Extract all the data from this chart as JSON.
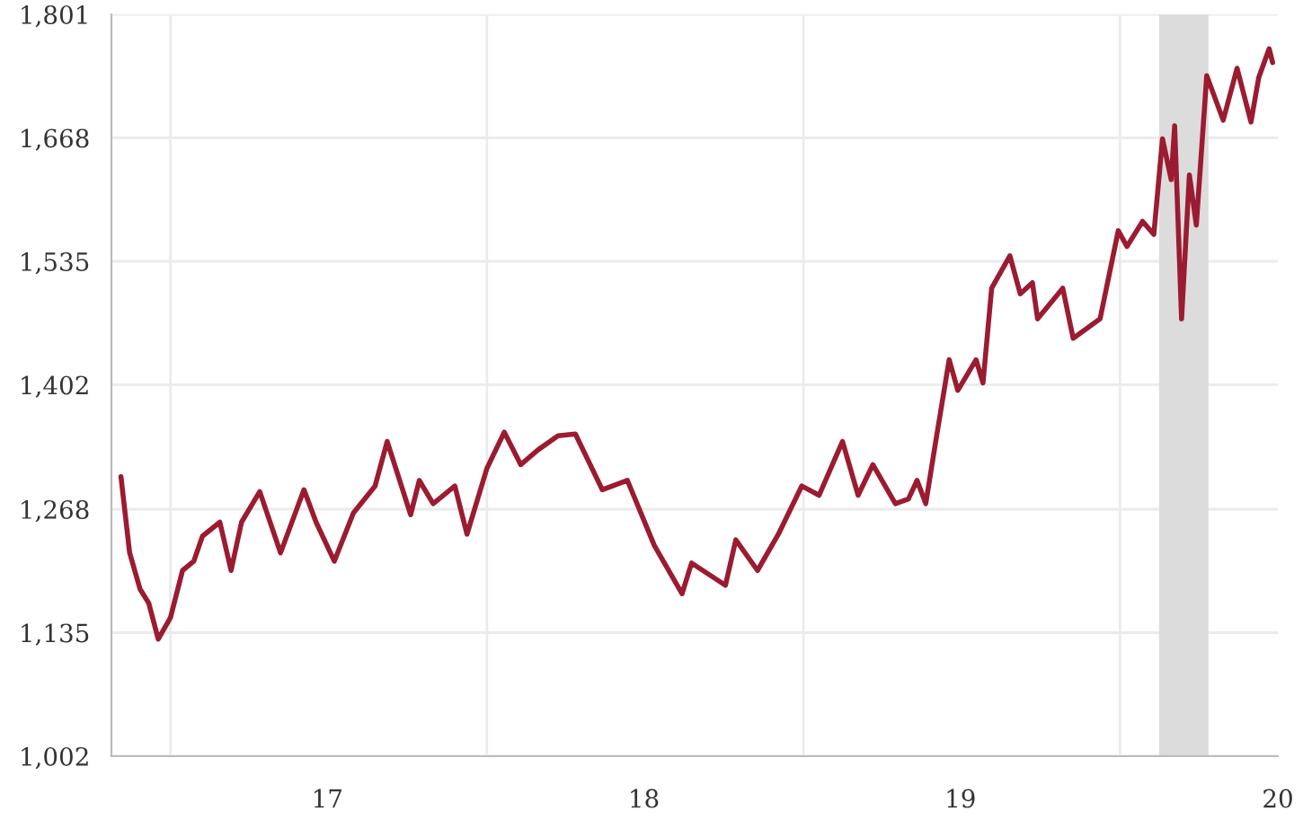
{
  "chart_data": {
    "type": "line",
    "x": [
      "2016-11-05",
      "2016-11-15",
      "2016-11-27",
      "2016-12-07",
      "2016-12-18",
      "2017-01-01",
      "2017-01-15",
      "2017-01-28",
      "2017-02-07",
      "2017-02-27",
      "2017-03-12",
      "2017-03-24",
      "2017-04-14",
      "2017-05-08",
      "2017-06-04",
      "2017-06-18",
      "2017-07-09",
      "2017-07-31",
      "2017-08-25",
      "2017-09-08",
      "2017-10-05",
      "2017-10-15",
      "2017-10-31",
      "2017-11-25",
      "2017-12-09",
      "2018-01-01",
      "2018-01-21",
      "2018-02-09",
      "2018-03-01",
      "2018-03-24",
      "2018-04-13",
      "2018-05-14",
      "2018-06-12",
      "2018-07-13",
      "2018-08-14",
      "2018-08-25",
      "2018-10-03",
      "2018-10-15",
      "2018-11-09",
      "2018-12-03",
      "2018-12-30",
      "2019-01-19",
      "2019-02-15",
      "2019-03-05",
      "2019-03-22",
      "2019-04-17",
      "2019-05-02",
      "2019-05-12",
      "2019-05-22",
      "2019-06-02",
      "2019-06-18",
      "2019-06-28",
      "2019-07-19",
      "2019-07-27",
      "2019-08-06",
      "2019-08-27",
      "2019-09-08",
      "2019-09-22",
      "2019-09-28",
      "2019-10-27",
      "2019-11-08",
      "2019-12-09",
      "2019-12-30",
      "2020-01-09",
      "2020-01-27",
      "2020-02-09",
      "2020-02-19",
      "2020-02-29",
      "2020-03-04",
      "2020-03-12",
      "2020-03-21",
      "2020-03-29",
      "2020-04-10",
      "2020-04-29",
      "2020-05-15",
      "2020-05-31",
      "2020-06-09",
      "2020-06-21",
      "2020-06-25"
    ],
    "series": [
      {
        "color": "#9b1b30",
        "values": [
          1303,
          1221,
          1182,
          1167,
          1128,
          1151,
          1202,
          1212,
          1239,
          1254,
          1202,
          1254,
          1287,
          1221,
          1289,
          1254,
          1212,
          1264,
          1293,
          1341,
          1262,
          1299,
          1274,
          1293,
          1241,
          1312,
          1351,
          1316,
          1332,
          1347,
          1349,
          1289,
          1299,
          1229,
          1177,
          1210,
          1186,
          1235,
          1202,
          1241,
          1293,
          1283,
          1341,
          1283,
          1316,
          1274,
          1279,
          1299,
          1274,
          1338,
          1429,
          1396,
          1429,
          1404,
          1506,
          1541,
          1500,
          1512,
          1473,
          1506,
          1452,
          1473,
          1568,
          1551,
          1578,
          1564,
          1667,
          1623,
          1681,
          1473,
          1628,
          1574,
          1735,
          1687,
          1743,
          1685,
          1733,
          1764,
          1749
        ]
      }
    ],
    "xlim": [
      "2016-10-25",
      "2020-07-01"
    ],
    "xticks": [
      {
        "value": "2017-01-01",
        "label": null
      },
      {
        "value": "2017-07-01",
        "label": "17"
      },
      {
        "value": "2018-01-01",
        "label": null
      },
      {
        "value": "2018-07-01",
        "label": "18"
      },
      {
        "value": "2019-01-01",
        "label": null
      },
      {
        "value": "2019-07-01",
        "label": "19"
      },
      {
        "value": "2020-01-01",
        "label": null
      },
      {
        "value": "2020-07-01",
        "label": "20"
      }
    ],
    "ylim": [
      1002,
      1801
    ],
    "yticks": [
      {
        "value": 1002,
        "label": "1,002"
      },
      {
        "value": 1135,
        "label": "1,135"
      },
      {
        "value": 1268,
        "label": "1,268"
      },
      {
        "value": 1402,
        "label": "1,402"
      },
      {
        "value": 1535,
        "label": "1,535"
      },
      {
        "value": 1668,
        "label": "1,668"
      },
      {
        "value": 1801,
        "label": "1,801"
      }
    ],
    "bands": [
      {
        "axis": "x",
        "from": "2020-02-15",
        "to": "2020-04-12",
        "color": "#dcdcdc"
      }
    ],
    "grid": true,
    "marker": "none",
    "line_style": "solid"
  }
}
